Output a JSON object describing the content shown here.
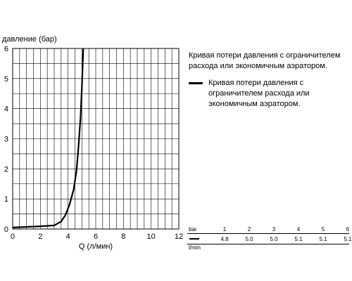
{
  "chart_data": {
    "type": "line",
    "title": "",
    "xlabel": "Q (л/мин)",
    "ylabel": "давление (бар)",
    "xlim": [
      0,
      12
    ],
    "ylim": [
      0,
      6
    ],
    "xticks": [
      "0",
      "2",
      "4",
      "6",
      "8",
      "10",
      "12"
    ],
    "yticks": [
      "0",
      "1",
      "2",
      "3",
      "4",
      "5",
      "6"
    ],
    "grid": true,
    "series": [
      {
        "name": "",
        "color": "#000000",
        "points": [
          [
            0,
            0.05
          ],
          [
            1,
            0.07
          ],
          [
            2,
            0.09
          ],
          [
            3,
            0.12
          ],
          [
            3.5,
            0.25
          ],
          [
            3.8,
            0.45
          ],
          [
            4.1,
            0.8
          ],
          [
            4.4,
            1.3
          ],
          [
            4.6,
            1.9
          ],
          [
            4.75,
            2.7
          ],
          [
            4.9,
            3.7
          ],
          [
            5.0,
            4.7
          ],
          [
            5.1,
            6.0
          ]
        ]
      }
    ]
  },
  "caption": "Кривая потери давления с ограничителем расхода или экономичным аэратором.",
  "legend": {
    "text": "Кривая потери давления с ограничителем расхода или экономичным аэратором."
  },
  "table": {
    "bar_label": "bar",
    "lmin_label": "l/min",
    "pressures": [
      "1",
      "2",
      "3",
      "4",
      "5",
      "6"
    ],
    "flows": [
      "4.8",
      "5.0",
      "5.0",
      "5.1",
      "5.1",
      "5.1"
    ]
  }
}
